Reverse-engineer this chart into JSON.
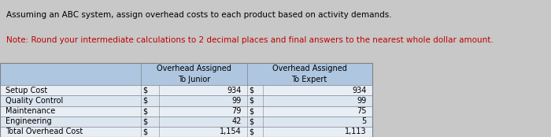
{
  "title_line1": "Assuming an ABC system, assign overhead costs to each product based on activity demands.",
  "title_line2": "Note: Round your intermediate calculations to 2 decimal places and final answers to the nearest whole dollar amount.",
  "rows": [
    [
      "Setup Cost",
      "$",
      "934",
      "$",
      "934"
    ],
    [
      "Quality Control",
      "$",
      "99",
      "$",
      "99"
    ],
    [
      "Maintenance",
      "$",
      "79",
      "$",
      "75"
    ],
    [
      "Engineering",
      "$",
      "42",
      "$",
      "5"
    ],
    [
      "Total Overhead Cost",
      "$",
      "1,154",
      "$",
      "1,113"
    ]
  ],
  "header_junior": "Overhead Assigned\nTo Junior",
  "header_expert": "Overhead Assigned\nTo Expert",
  "header_bg": "#aec6e0",
  "row_bg_light": "#dce6f1",
  "row_bg_white": "#e8eef5",
  "title_bg": "#dce9f5",
  "title_color": "#000000",
  "note_color": "#c00000",
  "outer_bg": "#c8c8c8",
  "border_color": "#808080",
  "text_color": "#000000",
  "title_fontsize": 7.5,
  "note_fontsize": 7.5,
  "table_fontsize": 7.0,
  "header_fontsize": 7.0
}
